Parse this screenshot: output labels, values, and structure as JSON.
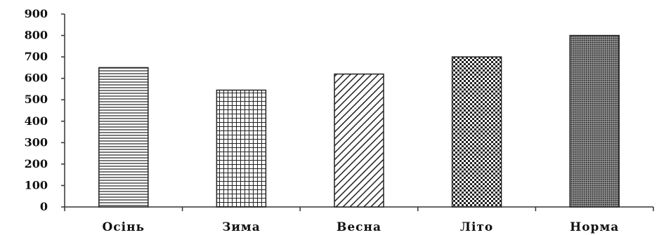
{
  "chart_data": {
    "type": "bar",
    "categories": [
      "Осінь",
      "Зима",
      "Весна",
      "Літо",
      "Норма"
    ],
    "values": [
      650,
      545,
      620,
      700,
      800
    ],
    "patterns": [
      "horizontal-lines",
      "grid",
      "diagonal-stripes",
      "checkerboard",
      "dotted"
    ],
    "title": "",
    "xlabel": "",
    "ylabel": "",
    "ylim": [
      0,
      900
    ],
    "yticks": [
      0,
      100,
      200,
      300,
      400,
      500,
      600,
      700,
      800,
      900
    ],
    "grid": false,
    "legend": "none"
  }
}
